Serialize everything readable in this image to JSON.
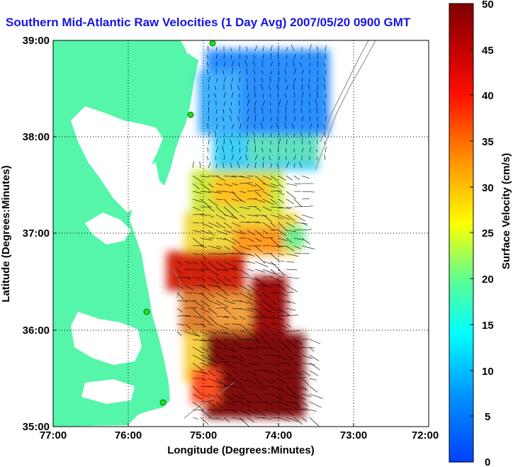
{
  "title": "Southern Mid-Atlantic Raw Velocities (1 Day Avg) 2007/05/20 0900 GMT",
  "x_axis": {
    "label": "Longitude (Degrees:Minutes)",
    "ticks": [
      "77:00",
      "76:00",
      "75:00",
      "74:00",
      "73:00",
      "72:00"
    ]
  },
  "y_axis": {
    "label": "Latitude (Degrees:Minutes)",
    "ticks": [
      "39:00",
      "38:00",
      "37:00",
      "36:00",
      "35:00"
    ]
  },
  "colorbar": {
    "label": "Surface Velocity (cm/s)",
    "ticks": [
      "50",
      "45",
      "40",
      "35",
      "30",
      "25",
      "20",
      "15",
      "10",
      "5",
      "0"
    ],
    "min": 0,
    "max": 50,
    "colors": [
      "#0000ff",
      "#0080ff",
      "#00ffff",
      "#80ff80",
      "#ffff00",
      "#ff8000",
      "#ff0000",
      "#800000"
    ]
  },
  "map": {
    "land_color": "#55f5aa",
    "ocean_color": "#ffffff",
    "grid_style": "dotted",
    "station_marker_color": "#22dd22",
    "extent": {
      "lon": [
        -77,
        -72
      ],
      "lat": [
        35,
        39
      ]
    }
  },
  "chart_data": {
    "type": "heatmap",
    "title": "Southern Mid-Atlantic Raw Velocities (1 Day Avg) 2007/05/20 0900 GMT",
    "xlabel": "Longitude (Degrees:Minutes)",
    "ylabel": "Latitude (Degrees:Minutes)",
    "colorbar_label": "Surface Velocity (cm/s)",
    "xlim": [
      -77,
      -72
    ],
    "ylim": [
      35,
      39
    ],
    "clim": [
      0,
      50
    ],
    "velocity_regions": [
      {
        "region": "north of 38:00",
        "approx_speed_cm_s": 8
      },
      {
        "region": "37:00-37:30 near 74:30",
        "approx_speed_cm_s": 28
      },
      {
        "region": "36:30 near 75:30",
        "approx_speed_cm_s": 45
      },
      {
        "region": "35:00-35:45 near 74:30",
        "approx_speed_cm_s": 50
      }
    ]
  }
}
